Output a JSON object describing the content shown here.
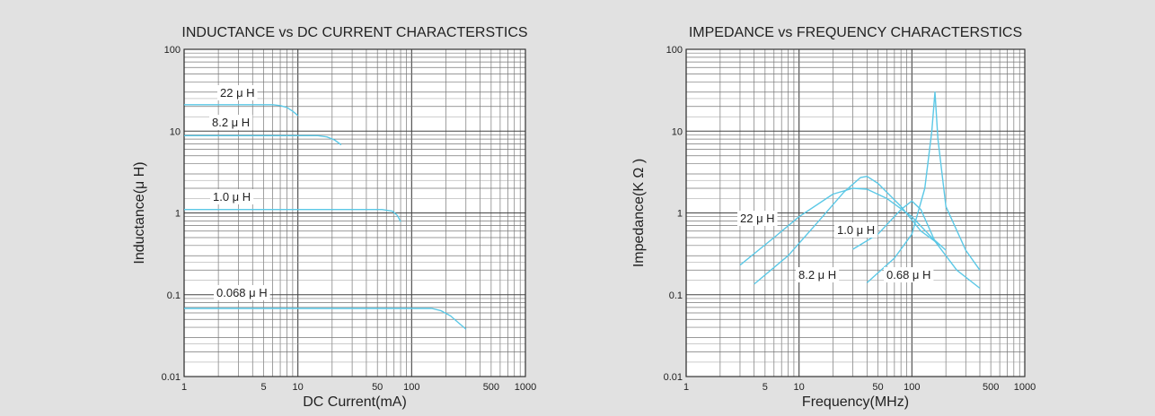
{
  "chart_data": [
    {
      "type": "line",
      "title": "INDUCTANCE vs DC CURRENT CHARACTERSTICS",
      "xlabel": "DC Current(mA)",
      "ylabel": "Inductance(μ H)",
      "xscale": "log",
      "yscale": "log",
      "xlim": [
        1,
        1000
      ],
      "ylim": [
        0.01,
        100
      ],
      "xticks": [
        {
          "value": 1,
          "label": "1"
        },
        {
          "value": 5,
          "label": "5"
        },
        {
          "value": 10,
          "label": "10"
        },
        {
          "value": 50,
          "label": "50"
        },
        {
          "value": 100,
          "label": "100"
        },
        {
          "value": 500,
          "label": "500"
        },
        {
          "value": 1000,
          "label": "1000"
        }
      ],
      "yticks": [
        {
          "value": 0.01,
          "label": "0.01"
        },
        {
          "value": 0.1,
          "label": "0.1"
        },
        {
          "value": 1,
          "label": "1"
        },
        {
          "value": 10,
          "label": "10"
        },
        {
          "value": 100,
          "label": "100"
        }
      ],
      "grid": true,
      "line_color": "#5bc8e6",
      "series": [
        {
          "name": "22 μ H",
          "points": [
            [
              1,
              21
            ],
            [
              6,
              21
            ],
            [
              7,
              20.5
            ],
            [
              8,
              19.5
            ],
            [
              9,
              17.5
            ],
            [
              10,
              15.5
            ]
          ]
        },
        {
          "name": "8.2 μ H",
          "points": [
            [
              1,
              8.8
            ],
            [
              15,
              8.8
            ],
            [
              18,
              8.5
            ],
            [
              21,
              7.8
            ],
            [
              24,
              6.8
            ]
          ]
        },
        {
          "name": "1.0 μ H",
          "points": [
            [
              1,
              1.1
            ],
            [
              55,
              1.1
            ],
            [
              68,
              1.05
            ],
            [
              75,
              0.93
            ],
            [
              80,
              0.78
            ]
          ]
        },
        {
          "name": "0.068 μ H",
          "points": [
            [
              1,
              0.068
            ],
            [
              150,
              0.068
            ],
            [
              180,
              0.064
            ],
            [
              220,
              0.055
            ],
            [
              260,
              0.045
            ],
            [
              300,
              0.038
            ]
          ]
        }
      ]
    },
    {
      "type": "line",
      "title": "IMPEDANCE vs FREQUENCY CHARACTERSTICS",
      "xlabel": "Frequency(MHz)",
      "ylabel": "Impedance(K Ω )",
      "xscale": "log",
      "yscale": "log",
      "xlim": [
        1,
        1000
      ],
      "ylim": [
        0.01,
        100
      ],
      "xticks": [
        {
          "value": 1,
          "label": "1"
        },
        {
          "value": 5,
          "label": "5"
        },
        {
          "value": 10,
          "label": "10"
        },
        {
          "value": 50,
          "label": "50"
        },
        {
          "value": 100,
          "label": "100"
        },
        {
          "value": 500,
          "label": "500"
        },
        {
          "value": 1000,
          "label": "1000"
        }
      ],
      "yticks": [
        {
          "value": 0.01,
          "label": "0.01"
        },
        {
          "value": 0.1,
          "label": "0.1"
        },
        {
          "value": 1,
          "label": "1"
        },
        {
          "value": 10,
          "label": "10"
        },
        {
          "value": 100,
          "label": "100"
        }
      ],
      "grid": true,
      "line_color": "#5bc8e6",
      "series": [
        {
          "name": "22 μ H",
          "points": [
            [
              3,
              0.23
            ],
            [
              6,
              0.5
            ],
            [
              10,
              0.9
            ],
            [
              20,
              1.7
            ],
            [
              30,
              2.0
            ],
            [
              40,
              1.95
            ],
            [
              60,
              1.5
            ],
            [
              100,
              0.9
            ],
            [
              150,
              0.5
            ],
            [
              200,
              0.35
            ]
          ]
        },
        {
          "name": "8.2 μ H",
          "points": [
            [
              4,
              0.135
            ],
            [
              8,
              0.3
            ],
            [
              15,
              0.8
            ],
            [
              25,
              1.8
            ],
            [
              35,
              2.7
            ],
            [
              40,
              2.8
            ],
            [
              50,
              2.3
            ],
            [
              80,
              1.2
            ],
            [
              120,
              0.6
            ],
            [
              180,
              0.4
            ]
          ]
        },
        {
          "name": "1.0 μ H",
          "points": [
            [
              30,
              0.36
            ],
            [
              50,
              0.55
            ],
            [
              80,
              1.1
            ],
            [
              100,
              1.4
            ],
            [
              120,
              1.1
            ],
            [
              160,
              0.45
            ],
            [
              250,
              0.2
            ],
            [
              400,
              0.12
            ]
          ]
        },
        {
          "name": "0.68 μ H",
          "points": [
            [
              40,
              0.14
            ],
            [
              70,
              0.28
            ],
            [
              100,
              0.55
            ],
            [
              130,
              2.0
            ],
            [
              150,
              10
            ],
            [
              160,
              30
            ],
            [
              170,
              8
            ],
            [
              200,
              1.2
            ],
            [
              300,
              0.35
            ],
            [
              400,
              0.2
            ]
          ]
        }
      ]
    }
  ]
}
